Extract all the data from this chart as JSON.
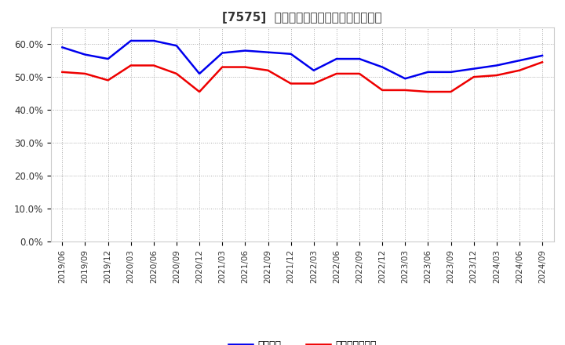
{
  "title": "[7575]  固定比率、固定長期適合率の推移",
  "line1_label": "固定比率",
  "line2_label": "固定長期適合率",
  "line1_color": "#0000ee",
  "line2_color": "#ee0000",
  "background_color": "#ffffff",
  "grid_color": "#aaaaaa",
  "ylim": [
    0.0,
    0.65
  ],
  "yticks": [
    0.0,
    0.1,
    0.2,
    0.3,
    0.4,
    0.5,
    0.6
  ],
  "x_labels": [
    "2019/06",
    "2019/09",
    "2019/12",
    "2020/03",
    "2020/06",
    "2020/09",
    "2020/12",
    "2021/03",
    "2021/06",
    "2021/09",
    "2021/12",
    "2022/03",
    "2022/06",
    "2022/09",
    "2022/12",
    "2023/03",
    "2023/06",
    "2023/09",
    "2023/12",
    "2024/03",
    "2024/06",
    "2024/09"
  ],
  "line1_values": [
    0.59,
    0.568,
    0.555,
    0.61,
    0.61,
    0.595,
    0.51,
    0.573,
    0.58,
    0.575,
    0.57,
    0.52,
    0.555,
    0.555,
    0.53,
    0.495,
    0.515,
    0.515,
    0.525,
    0.535,
    0.55,
    0.565
  ],
  "line2_values": [
    0.515,
    0.51,
    0.49,
    0.535,
    0.535,
    0.51,
    0.455,
    0.53,
    0.53,
    0.52,
    0.48,
    0.48,
    0.51,
    0.51,
    0.46,
    0.46,
    0.455,
    0.455,
    0.5,
    0.505,
    0.52,
    0.545
  ]
}
